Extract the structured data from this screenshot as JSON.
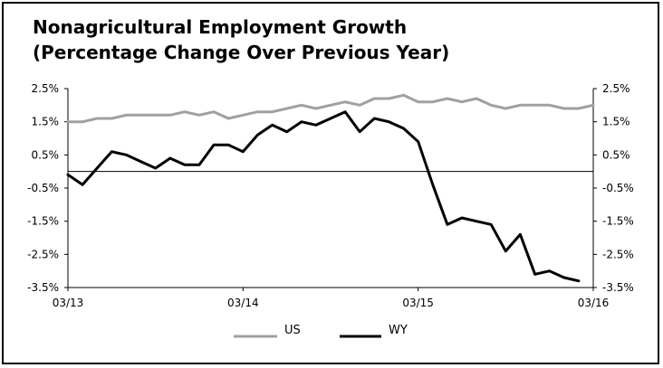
{
  "chart_data": {
    "type": "line",
    "title_line1": "Nonagricultural Employment Growth",
    "title_line2": "(Percentage Change Over Previous Year)",
    "xlabel": "",
    "ylabel": "",
    "ylim": [
      -3.5,
      2.5
    ],
    "y_ticks": [
      "2.5%",
      "1.5%",
      "0.5%",
      "-0.5%",
      "-1.5%",
      "-2.5%",
      "-3.5%"
    ],
    "y_tick_values": [
      2.5,
      1.5,
      0.5,
      -0.5,
      -1.5,
      -2.5,
      -3.5
    ],
    "x_ticks": [
      "03/13",
      "03/14",
      "03/15",
      "03/16"
    ],
    "x_tick_index": [
      0,
      12,
      24,
      36
    ],
    "grid": false,
    "legend_position": "bottom",
    "colors": {
      "US": "#a0a0a0",
      "WY": "#000000"
    },
    "series": [
      {
        "name": "US",
        "values": [
          1.5,
          1.5,
          1.6,
          1.6,
          1.7,
          1.7,
          1.7,
          1.7,
          1.8,
          1.7,
          1.8,
          1.6,
          1.7,
          1.8,
          1.8,
          1.9,
          2.0,
          1.9,
          2.0,
          2.1,
          2.0,
          2.2,
          2.2,
          2.3,
          2.1,
          2.1,
          2.2,
          2.1,
          2.2,
          2.0,
          1.9,
          2.0,
          2.0,
          2.0,
          1.9,
          1.9,
          2.0
        ]
      },
      {
        "name": "WY",
        "values": [
          -0.1,
          -0.4,
          0.1,
          0.6,
          0.5,
          0.3,
          0.1,
          0.4,
          0.2,
          0.2,
          0.8,
          0.8,
          0.6,
          1.1,
          1.4,
          1.2,
          1.5,
          1.4,
          1.6,
          1.8,
          1.2,
          1.6,
          1.5,
          1.3,
          0.9,
          -0.4,
          -1.6,
          -1.4,
          -1.5,
          -1.6,
          -2.4,
          -1.9,
          -3.1,
          -3.0,
          -3.2,
          -3.3
        ]
      }
    ]
  }
}
